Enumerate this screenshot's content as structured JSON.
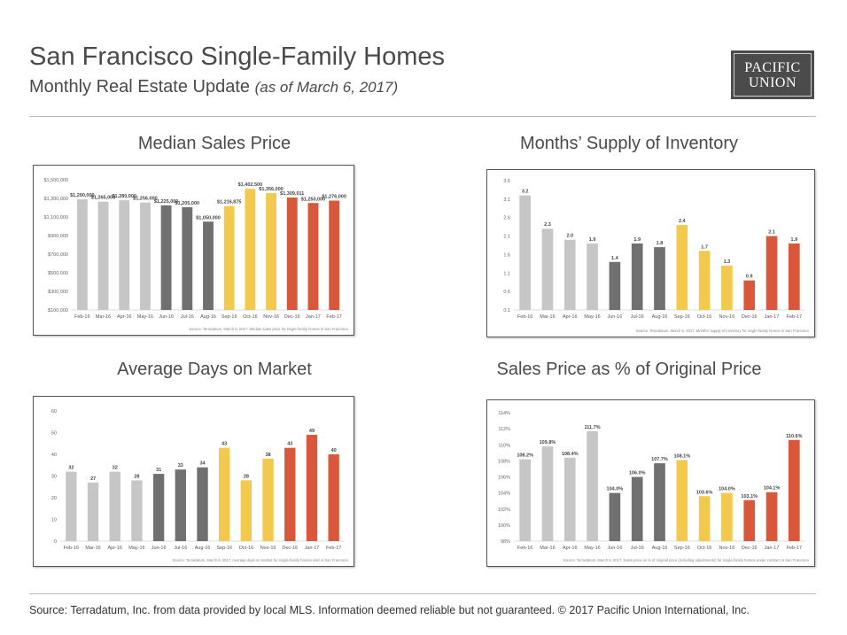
{
  "header": {
    "title": "San Francisco Single-Family Homes",
    "subtitle": "Monthly Real Estate Update",
    "as_of": "(as of March 6, 2017)",
    "logo_line1": "PACIFIC",
    "logo_line2": "UNION"
  },
  "footer": {
    "text": "Source: Terradatum, Inc. from data provided by local MLS. Information deemed reliable but not guaranteed.  © 2017 Pacific Union International, Inc."
  },
  "colors": {
    "light_gray": "#c6c6c6",
    "dark_gray": "#707070",
    "yellow": "#f2c94c",
    "red": "#d9573a"
  },
  "chart_data": [
    {
      "id": "median",
      "type": "bar",
      "title": "Median Sales Price",
      "categories": [
        "Feb-16",
        "Mar-16",
        "Apr-16",
        "May-16",
        "Jun-16",
        "Jul-16",
        "Aug-16",
        "Sep-16",
        "Oct-16",
        "Nov-16",
        "Dec-16",
        "Jan-17",
        "Feb-17"
      ],
      "values": [
        1290000,
        1265000,
        1280000,
        1256000,
        1225000,
        1205000,
        1050000,
        1216875,
        1402500,
        1356000,
        1309011,
        1250000,
        1276000
      ],
      "value_labels": [
        "$1,290,000",
        "$1,265,000",
        "$1,280,000",
        "$1,256,000",
        "$1,225,000",
        "$1,205,000",
        "$1,050,000",
        "$1,216,875",
        "$1,402,500",
        "$1,356,000",
        "$1,309,011",
        "$1,250,000",
        "$1,276,000"
      ],
      "yticks": [
        "$100,000",
        "$300,000",
        "$500,000",
        "$700,000",
        "$900,000",
        "$1,100,000",
        "$1,300,000",
        "$1,500,000"
      ],
      "ylim": [
        100000,
        1500000
      ],
      "colors": [
        "light_gray",
        "light_gray",
        "light_gray",
        "light_gray",
        "dark_gray",
        "dark_gray",
        "dark_gray",
        "yellow",
        "yellow",
        "yellow",
        "red",
        "red",
        "red"
      ],
      "source": "Source: Terradatum, March 6, 2017. Median sales price for single-family homes in San Francisco"
    },
    {
      "id": "supply",
      "type": "bar",
      "title": "Months’ Supply of Inventory",
      "categories": [
        "Feb-16",
        "Mar-16",
        "Apr-16",
        "May-16",
        "Jun-16",
        "Jul-16",
        "Aug-16",
        "Sep-16",
        "Oct-16",
        "Nov-16",
        "Dec-16",
        "Jan-17",
        "Feb-17"
      ],
      "values": [
        3.2,
        2.3,
        2.0,
        1.9,
        1.4,
        1.9,
        1.8,
        2.4,
        1.7,
        1.3,
        0.9,
        2.1,
        1.9
      ],
      "value_labels": [
        "3.2",
        "2.3",
        "2.0",
        "1.9",
        "1.4",
        "1.9",
        "1.8",
        "2.4",
        "1.7",
        "1.3",
        "0.9",
        "2.1",
        "1.9"
      ],
      "yticks": [
        "0.1",
        "0.6",
        "1.1",
        "1.6",
        "2.1",
        "2.6",
        "3.1",
        "3.6"
      ],
      "ylim": [
        0.1,
        3.6
      ],
      "colors": [
        "light_gray",
        "light_gray",
        "light_gray",
        "light_gray",
        "dark_gray",
        "dark_gray",
        "dark_gray",
        "yellow",
        "yellow",
        "yellow",
        "red",
        "red",
        "red"
      ],
      "source": "Source: Terradatum, March 6, 2017. Months' supply of inventory for single-family homes in San Francisco"
    },
    {
      "id": "dom",
      "type": "bar",
      "title": "Average Days on Market",
      "categories": [
        "Feb-16",
        "Mar-16",
        "Apr-16",
        "May-16",
        "Jun-16",
        "Jul-16",
        "Aug-16",
        "Sep-16",
        "Oct-16",
        "Nov-16",
        "Dec-16",
        "Jan-17",
        "Feb-17"
      ],
      "values": [
        32,
        27,
        32,
        28,
        31,
        33,
        34,
        43,
        28,
        38,
        43,
        49,
        40
      ],
      "value_labels": [
        "32",
        "27",
        "32",
        "28",
        "31",
        "33",
        "34",
        "43",
        "28",
        "38",
        "43",
        "49",
        "40"
      ],
      "yticks": [
        "0",
        "10",
        "20",
        "30",
        "40",
        "50",
        "60"
      ],
      "ylim": [
        0,
        60
      ],
      "colors": [
        "light_gray",
        "light_gray",
        "light_gray",
        "light_gray",
        "dark_gray",
        "dark_gray",
        "dark_gray",
        "yellow",
        "yellow",
        "yellow",
        "red",
        "red",
        "red"
      ],
      "source": "Source: Terradatum, March 6, 2017. Average days on market for single-family homes sold in San Francisco"
    },
    {
      "id": "pct",
      "type": "bar",
      "title": "Sales Price as % of Original Price",
      "categories": [
        "Feb-16",
        "Mar-16",
        "Apr-16",
        "May-16",
        "Jun-16",
        "Jul-16",
        "Aug-16",
        "Sep-16",
        "Oct-16",
        "Nov-16",
        "Dec-16",
        "Jan-17",
        "Feb-17"
      ],
      "values": [
        108.2,
        109.8,
        108.4,
        111.7,
        104.0,
        106.0,
        107.7,
        108.1,
        103.6,
        104.0,
        103.1,
        104.1,
        110.6
      ],
      "value_labels": [
        "108.2%",
        "109.8%",
        "108.4%",
        "111.7%",
        "104.0%",
        "106.0%",
        "107.7%",
        "108.1%",
        "103.6%",
        "104.0%",
        "103.1%",
        "104.1%",
        "110.6%"
      ],
      "yticks": [
        "98%",
        "100%",
        "102%",
        "104%",
        "106%",
        "108%",
        "110%",
        "112%",
        "114%"
      ],
      "ylim": [
        98,
        114
      ],
      "colors": [
        "light_gray",
        "light_gray",
        "light_gray",
        "light_gray",
        "dark_gray",
        "dark_gray",
        "dark_gray",
        "yellow",
        "yellow",
        "yellow",
        "red",
        "red",
        "red"
      ],
      "source": "Source: Terradatum, March 6, 2017. Sales price as % of original price (including adjustments) for single-family homes under contract in San Francisco"
    }
  ]
}
